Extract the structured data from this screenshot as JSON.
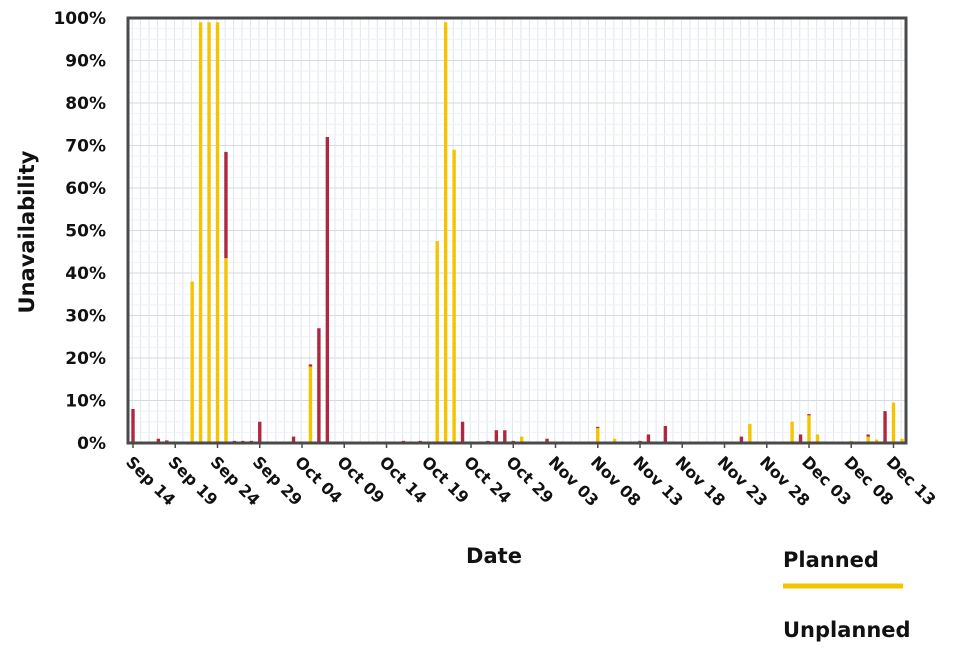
{
  "chart_data": {
    "type": "bar",
    "stacked": true,
    "xlabel": "Date",
    "ylabel": "Unavailability",
    "ylim": [
      0,
      100
    ],
    "y_ticks": [
      "0%",
      "10%",
      "20%",
      "30%",
      "40%",
      "50%",
      "60%",
      "70%",
      "80%",
      "90%",
      "100%"
    ],
    "x_start": "Sep 14",
    "x_ticks": [
      "Sep 14",
      "Sep 19",
      "Sep 24",
      "Sep 29",
      "Oct 04",
      "Oct 09",
      "Oct 14",
      "Oct 19",
      "Oct 24",
      "Oct 29",
      "Nov 03",
      "Nov 08",
      "Nov 13",
      "Nov 18",
      "Nov 23",
      "Nov 28",
      "Dec 03",
      "Dec 08",
      "Dec 13"
    ],
    "grid": true,
    "legend_position": "bottom-right",
    "colors": {
      "planned": "#f5c400",
      "unplanned": "#b0283f"
    },
    "series": [
      {
        "name": "Planned",
        "points": [
          [
            "Sep 21",
            38
          ],
          [
            "Sep 22",
            99
          ],
          [
            "Sep 23",
            99
          ],
          [
            "Sep 24",
            99
          ],
          [
            "Sep 25",
            43.5
          ],
          [
            "Oct 05",
            18
          ],
          [
            "Oct 20",
            47.5
          ],
          [
            "Oct 21",
            99
          ],
          [
            "Oct 22",
            69
          ],
          [
            "Oct 30",
            1.5
          ],
          [
            "Nov 08",
            3.5
          ],
          [
            "Nov 10",
            1
          ],
          [
            "Nov 26",
            4.5
          ],
          [
            "Dec 01",
            5
          ],
          [
            "Dec 03",
            6.5
          ],
          [
            "Dec 04",
            2
          ],
          [
            "Dec 08",
            0.5
          ],
          [
            "Dec 10",
            1.5
          ],
          [
            "Dec 11",
            0.8
          ],
          [
            "Dec 13",
            9.5
          ],
          [
            "Dec 14",
            1
          ]
        ]
      },
      {
        "name": "Unplanned",
        "points": [
          [
            "Sep 14",
            8
          ],
          [
            "Sep 17",
            1
          ],
          [
            "Sep 18",
            0.6
          ],
          [
            "Sep 25",
            25
          ],
          [
            "Sep 26",
            0.5
          ],
          [
            "Sep 27",
            0.5
          ],
          [
            "Sep 28",
            0.5
          ],
          [
            "Sep 29",
            5
          ],
          [
            "Oct 03",
            1.5
          ],
          [
            "Oct 05",
            0.5
          ],
          [
            "Oct 06",
            27
          ],
          [
            "Oct 07",
            72
          ],
          [
            "Oct 16",
            0.5
          ],
          [
            "Oct 18",
            0.5
          ],
          [
            "Oct 23",
            5
          ],
          [
            "Oct 26",
            0.5
          ],
          [
            "Oct 27",
            3
          ],
          [
            "Oct 28",
            3
          ],
          [
            "Oct 29",
            0.5
          ],
          [
            "Nov 02",
            1
          ],
          [
            "Nov 06",
            0.3
          ],
          [
            "Nov 08",
            0.3
          ],
          [
            "Nov 13",
            0.5
          ],
          [
            "Nov 14",
            2
          ],
          [
            "Nov 16",
            4
          ],
          [
            "Nov 25",
            1.5
          ],
          [
            "Dec 02",
            2
          ],
          [
            "Dec 03",
            0.3
          ],
          [
            "Dec 10",
            0.5
          ],
          [
            "Dec 12",
            7.5
          ]
        ]
      }
    ]
  }
}
